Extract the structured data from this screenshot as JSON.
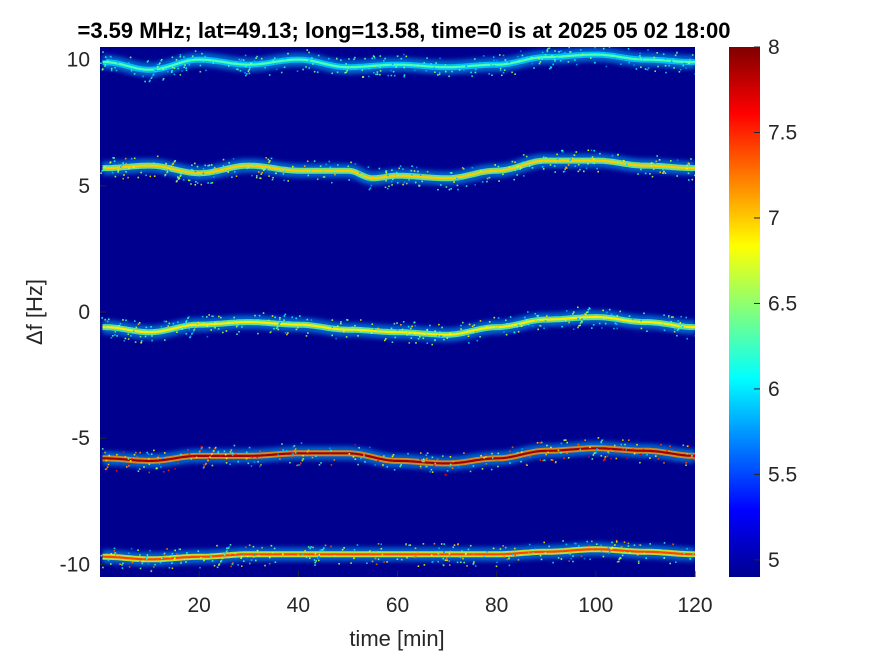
{
  "chart_data": {
    "type": "heatmap",
    "title": "=3.59 MHz;  lat=49.13; long=13.58, time=0 is at 2025 05 02 18:00",
    "xlabel": "time [min]",
    "ylabel": "Δf [Hz]",
    "xlim": [
      0,
      120
    ],
    "ylim": [
      -10.5,
      10.5
    ],
    "x_ticks": [
      20,
      40,
      60,
      80,
      100,
      120
    ],
    "x_tick_labels": [
      "20",
      "40",
      "60",
      "80",
      "100",
      "120"
    ],
    "y_ticks": [
      -10,
      -5,
      0,
      5,
      10
    ],
    "y_tick_labels": [
      "-10",
      "-5",
      "0",
      "5",
      "10"
    ],
    "colorbar": {
      "min": 4.9,
      "max": 8,
      "ticks": [
        5,
        5.5,
        6,
        6.5,
        7,
        7.5,
        8
      ],
      "tick_labels": [
        "5",
        "5.5",
        "6",
        "6.5",
        "7",
        "7.5",
        "8"
      ],
      "colormap": "jet"
    },
    "background_value": 4.9,
    "traces": [
      {
        "center_hz": 9.9,
        "intensity": 6.3,
        "path": [
          [
            1,
            9.9
          ],
          [
            10,
            9.6
          ],
          [
            20,
            10.0
          ],
          [
            30,
            9.8
          ],
          [
            40,
            10.0
          ],
          [
            50,
            9.7
          ],
          [
            60,
            9.8
          ],
          [
            70,
            9.7
          ],
          [
            80,
            9.8
          ],
          [
            90,
            10.1
          ],
          [
            100,
            10.2
          ],
          [
            110,
            10.0
          ],
          [
            120,
            9.9
          ]
        ]
      },
      {
        "center_hz": 5.7,
        "intensity": 7.0,
        "path": [
          [
            1,
            5.7
          ],
          [
            10,
            5.8
          ],
          [
            20,
            5.5
          ],
          [
            30,
            5.8
          ],
          [
            40,
            5.6
          ],
          [
            50,
            5.6
          ],
          [
            55,
            5.3
          ],
          [
            60,
            5.4
          ],
          [
            70,
            5.3
          ],
          [
            80,
            5.6
          ],
          [
            90,
            6.0
          ],
          [
            100,
            6.0
          ],
          [
            110,
            5.8
          ],
          [
            120,
            5.7
          ]
        ]
      },
      {
        "center_hz": -0.6,
        "intensity": 6.9,
        "path": [
          [
            1,
            -0.6
          ],
          [
            10,
            -0.8
          ],
          [
            20,
            -0.5
          ],
          [
            30,
            -0.4
          ],
          [
            40,
            -0.5
          ],
          [
            50,
            -0.7
          ],
          [
            60,
            -0.8
          ],
          [
            70,
            -0.9
          ],
          [
            80,
            -0.6
          ],
          [
            90,
            -0.3
          ],
          [
            100,
            -0.2
          ],
          [
            110,
            -0.4
          ],
          [
            120,
            -0.6
          ]
        ]
      },
      {
        "center_hz": -5.8,
        "intensity": 7.9,
        "path": [
          [
            1,
            -5.8
          ],
          [
            10,
            -5.9
          ],
          [
            20,
            -5.7
          ],
          [
            30,
            -5.7
          ],
          [
            40,
            -5.6
          ],
          [
            50,
            -5.6
          ],
          [
            60,
            -5.9
          ],
          [
            70,
            -6.0
          ],
          [
            80,
            -5.8
          ],
          [
            90,
            -5.5
          ],
          [
            100,
            -5.4
          ],
          [
            110,
            -5.5
          ],
          [
            120,
            -5.7
          ]
        ]
      },
      {
        "center_hz": -9.7,
        "intensity": 7.4,
        "path": [
          [
            1,
            -9.7
          ],
          [
            10,
            -9.8
          ],
          [
            20,
            -9.7
          ],
          [
            30,
            -9.6
          ],
          [
            40,
            -9.6
          ],
          [
            50,
            -9.6
          ],
          [
            60,
            -9.6
          ],
          [
            70,
            -9.6
          ],
          [
            80,
            -9.6
          ],
          [
            90,
            -9.5
          ],
          [
            100,
            -9.4
          ],
          [
            110,
            -9.5
          ],
          [
            120,
            -9.6
          ]
        ]
      }
    ]
  }
}
